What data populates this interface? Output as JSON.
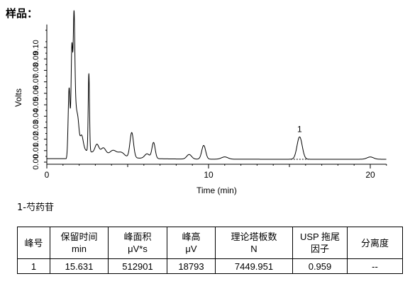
{
  "heading": "样品：",
  "chart_data": {
    "type": "line",
    "xlabel": "Time (min)",
    "ylabel": "Volts",
    "xlim": [
      0,
      21
    ],
    "ylim": [
      0,
      0.12
    ],
    "xticks": [
      "0",
      "10",
      "20"
    ],
    "yticks": [
      "0.00",
      "0.01",
      "0.02",
      "0.03",
      "0.04",
      "0.05",
      "0.06",
      "0.07",
      "0.08",
      "0.09",
      "0.10"
    ],
    "peak_label": "1",
    "series": [
      {
        "baseline": 0.0025,
        "peaks": [
          {
            "t": 1.38,
            "h": 0.062,
            "w": 0.06
          },
          {
            "t": 1.55,
            "h": 0.092,
            "w": 0.05
          },
          {
            "t": 1.68,
            "h": 0.104,
            "w": 0.05
          },
          {
            "t": 1.78,
            "h": 0.03,
            "w": 0.07
          },
          {
            "t": 1.92,
            "h": 0.022,
            "w": 0.07
          },
          {
            "t": 2.15,
            "h": 0.012,
            "w": 0.1
          },
          {
            "t": 2.6,
            "h": 0.068,
            "w": 0.04
          },
          {
            "t": 3.1,
            "h": 0.008,
            "w": 0.12
          },
          {
            "t": 3.5,
            "h": 0.006,
            "w": 0.15
          },
          {
            "t": 4.1,
            "h": 0.005,
            "w": 0.2
          },
          {
            "t": 4.6,
            "h": 0.004,
            "w": 0.2
          },
          {
            "t": 5.25,
            "h": 0.022,
            "w": 0.11
          },
          {
            "t": 6.2,
            "h": 0.004,
            "w": 0.15
          },
          {
            "t": 6.6,
            "h": 0.014,
            "w": 0.1
          },
          {
            "t": 8.8,
            "h": 0.004,
            "w": 0.15
          },
          {
            "t": 9.7,
            "h": 0.012,
            "w": 0.12
          },
          {
            "t": 11.0,
            "h": 0.002,
            "w": 0.2
          },
          {
            "t": 15.631,
            "h": 0.0195,
            "w": 0.16
          },
          {
            "t": 20.0,
            "h": 0.002,
            "w": 0.2
          }
        ],
        "hump": {
          "t": 1.7,
          "h": 0.012,
          "decay": 1.6
        }
      }
    ]
  },
  "peak_note": "1-芍药苷",
  "table": {
    "headers": [
      [
        "峰号"
      ],
      [
        "保留时间",
        "min"
      ],
      [
        "峰面积",
        "μV*s"
      ],
      [
        "峰高",
        "μV"
      ],
      [
        "理论塔板数",
        "N"
      ],
      [
        "USP 拖尾",
        "因子"
      ],
      [
        "分离度"
      ]
    ],
    "row": [
      "1",
      "15.631",
      "512901",
      "18793",
      "7449.951",
      "0.959",
      "--"
    ]
  }
}
